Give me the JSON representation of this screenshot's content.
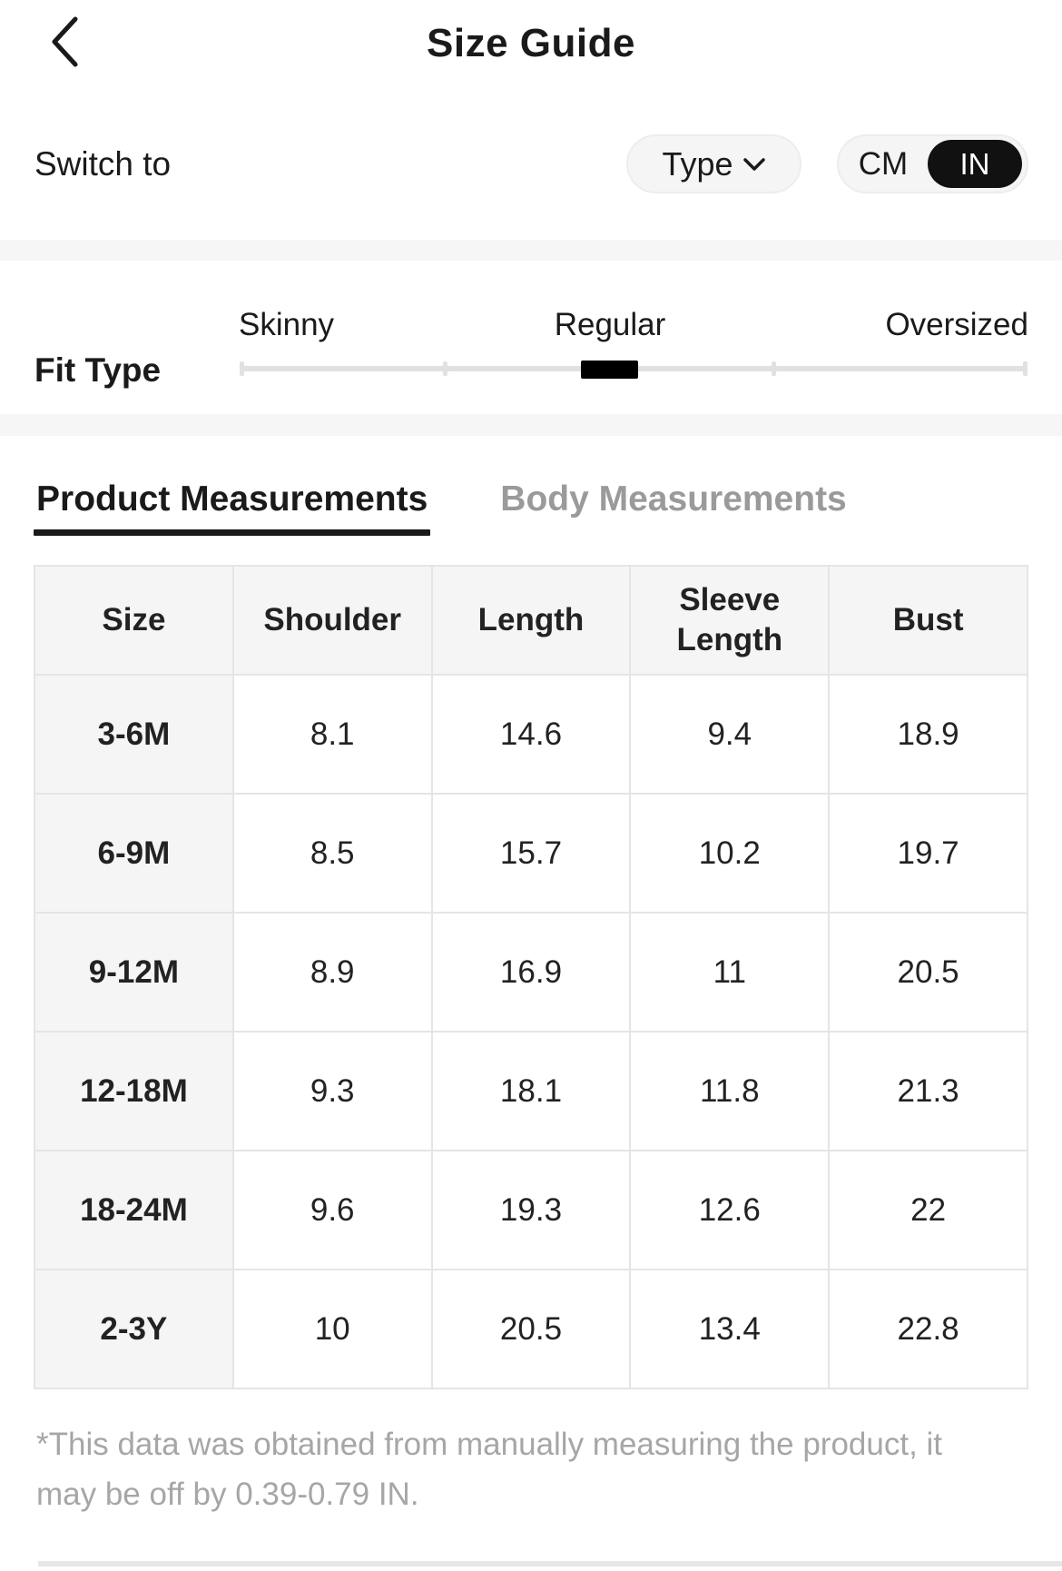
{
  "header": {
    "title": "Size Guide",
    "back_icon": "chevron-left"
  },
  "unit_bar": {
    "switch_label": "Switch to",
    "type_button_label": "Type",
    "type_button_icon": "chevron-down",
    "unit_cm": "CM",
    "unit_in": "IN",
    "selected_unit": "IN"
  },
  "fit_type": {
    "label": "Fit Type",
    "options": {
      "skinny": "Skinny",
      "regular": "Regular",
      "oversized": "Oversized"
    },
    "selected": "Regular"
  },
  "tabs": {
    "product": {
      "label": "Product Measurements",
      "active": true
    },
    "body": {
      "label": "Body Measurements",
      "active": false
    }
  },
  "table": {
    "columns": [
      "Size",
      "Shoulder",
      "Length",
      "Sleeve Length",
      "Bust"
    ],
    "rows": [
      [
        "3-6M",
        "8.1",
        "14.6",
        "9.4",
        "18.9"
      ],
      [
        "6-9M",
        "8.5",
        "15.7",
        "10.2",
        "19.7"
      ],
      [
        "9-12M",
        "8.9",
        "16.9",
        "11",
        "20.5"
      ],
      [
        "12-18M",
        "9.3",
        "18.1",
        "11.8",
        "21.3"
      ],
      [
        "18-24M",
        "9.6",
        "19.3",
        "12.6",
        "22"
      ],
      [
        "2-3Y",
        "10",
        "20.5",
        "13.4",
        "22.8"
      ]
    ]
  },
  "footnote": "*This data was obtained from manually measuring the product, it may be off by 0.39-0.79 IN.",
  "colors": {
    "text_dark": "#1a1a1a",
    "inactive_tab_gray": "#9a9a9a",
    "footnote_gray": "#a6a6a6",
    "band_gray": "#f6f6f6",
    "pill_gray": "#f5f5f5",
    "table_border": "#e5e5e5",
    "table_head_bg": "#f5f5f5",
    "toggle_selected_bg": "#111111",
    "slider_track": "#e1e1e1",
    "slider_handle": "#000000"
  }
}
